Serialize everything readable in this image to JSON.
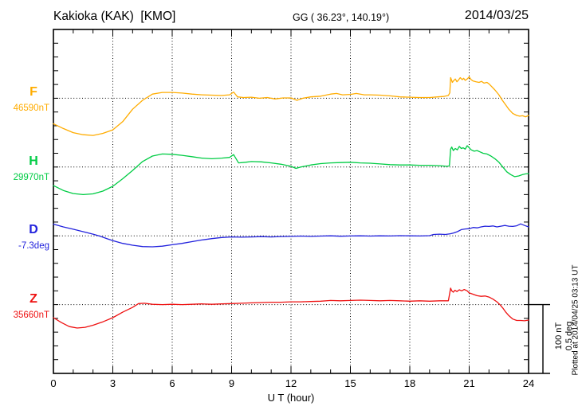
{
  "header": {
    "station_title": "Kakioka (KAK)  [KMO]",
    "coordinates": "GG ( 36.23°, 140.19°)",
    "date": "2014/03/25"
  },
  "x_axis": {
    "label": "U T (hour)",
    "tick_labels": [
      "0",
      "3",
      "6",
      "9",
      "12",
      "15",
      "18",
      "21",
      "24"
    ],
    "min": 0,
    "max": 24,
    "major_step_hours": 3,
    "minor_step_hours": 1
  },
  "scale_bar": {
    "labels": [
      "100 nT",
      "0.5 deg"
    ]
  },
  "footer_note": "Plotted at 2014/04/25 03:13 UT",
  "colors": {
    "F": "#FFAC00",
    "H": "#00CC44",
    "D": "#2222DD",
    "Z": "#EE1111",
    "axis": "#000000",
    "background": "#FFFFFF"
  },
  "chart_data": {
    "type": "line",
    "title": "Kakioka (KAK) [KMO] magnetogram 2014/03/25",
    "xlabel": "U T (hour)",
    "xlim": [
      0,
      24
    ],
    "grid": "dotted vertical lines every 3 h; dotted horizontal baseline per trace",
    "legend_position": "left margin, one label per trace",
    "scale_per_bar": {
      "nT": 100,
      "deg": 0.5
    },
    "series": [
      {
        "name": "F",
        "letter": "F",
        "value_label": "46590nT",
        "baseline_value": 46590,
        "unit": "nT",
        "units_per_bar": 100,
        "color_key": "F",
        "points": [
          [
            0,
            -37
          ],
          [
            0.5,
            -44
          ],
          [
            1,
            -50
          ],
          [
            1.5,
            -53
          ],
          [
            2,
            -54
          ],
          [
            2.5,
            -51
          ],
          [
            3,
            -46
          ],
          [
            3.5,
            -34
          ],
          [
            4,
            -16
          ],
          [
            4.5,
            -3
          ],
          [
            5,
            6
          ],
          [
            5.5,
            8.5
          ],
          [
            6,
            8.5
          ],
          [
            6.5,
            7.5
          ],
          [
            7,
            6
          ],
          [
            7.5,
            5
          ],
          [
            8,
            4.5
          ],
          [
            8.5,
            4
          ],
          [
            8.9,
            5
          ],
          [
            9.1,
            9
          ],
          [
            9.3,
            2
          ],
          [
            9.6,
            1
          ],
          [
            10,
            1.5
          ],
          [
            10.4,
            0
          ],
          [
            10.8,
            1
          ],
          [
            11.2,
            -1
          ],
          [
            11.6,
            0.5
          ],
          [
            12,
            0.5
          ],
          [
            12.3,
            -3
          ],
          [
            12.6,
            0
          ],
          [
            13,
            2
          ],
          [
            13.5,
            3
          ],
          [
            14,
            6
          ],
          [
            14.3,
            7
          ],
          [
            14.6,
            5
          ],
          [
            15,
            5.5
          ],
          [
            15.3,
            7
          ],
          [
            15.7,
            5
          ],
          [
            16,
            5
          ],
          [
            16.5,
            4.5
          ],
          [
            17,
            3.5
          ],
          [
            17.5,
            2
          ],
          [
            18,
            1.5
          ],
          [
            18.5,
            1
          ],
          [
            19,
            1
          ],
          [
            19.4,
            2
          ],
          [
            19.7,
            2.5
          ],
          [
            19.95,
            4
          ],
          [
            20.02,
            8
          ],
          [
            20.06,
            30
          ],
          [
            20.1,
            27
          ],
          [
            20.15,
            23
          ],
          [
            20.2,
            25
          ],
          [
            20.3,
            28
          ],
          [
            20.38,
            24
          ],
          [
            20.45,
            26
          ],
          [
            20.55,
            30
          ],
          [
            20.65,
            27
          ],
          [
            20.72,
            29
          ],
          [
            20.8,
            26
          ],
          [
            20.9,
            28
          ],
          [
            21,
            31
          ],
          [
            21.1,
            27
          ],
          [
            21.2,
            25
          ],
          [
            21.35,
            24
          ],
          [
            21.5,
            23
          ],
          [
            21.62,
            24.5
          ],
          [
            21.75,
            22
          ],
          [
            21.9,
            23
          ],
          [
            22,
            21
          ],
          [
            22.1,
            18
          ],
          [
            22.3,
            12
          ],
          [
            22.5,
            5
          ],
          [
            22.65,
            -2
          ],
          [
            22.8,
            -8
          ],
          [
            23,
            -16
          ],
          [
            23.2,
            -22
          ],
          [
            23.4,
            -25
          ],
          [
            23.55,
            -26
          ],
          [
            23.7,
            -25.5
          ],
          [
            23.85,
            -27
          ],
          [
            24,
            -25
          ]
        ]
      },
      {
        "name": "H",
        "letter": "H",
        "value_label": "29970nT",
        "baseline_value": 29970,
        "unit": "nT",
        "units_per_bar": 100,
        "color_key": "H",
        "points": [
          [
            0,
            -27
          ],
          [
            0.5,
            -34
          ],
          [
            1,
            -38.5
          ],
          [
            1.5,
            -40
          ],
          [
            2,
            -39
          ],
          [
            2.5,
            -35
          ],
          [
            3,
            -28
          ],
          [
            3.5,
            -17
          ],
          [
            4,
            -5
          ],
          [
            4.5,
            8
          ],
          [
            5,
            16
          ],
          [
            5.5,
            19
          ],
          [
            6,
            18.5
          ],
          [
            6.5,
            17
          ],
          [
            7,
            15
          ],
          [
            7.5,
            13
          ],
          [
            8,
            12
          ],
          [
            8.5,
            13
          ],
          [
            8.9,
            14
          ],
          [
            9.1,
            18
          ],
          [
            9.35,
            6
          ],
          [
            9.7,
            7
          ],
          [
            10,
            8
          ],
          [
            10.5,
            7.5
          ],
          [
            11,
            6
          ],
          [
            11.5,
            4
          ],
          [
            12,
            1
          ],
          [
            12.25,
            -2
          ],
          [
            12.5,
            0
          ],
          [
            13,
            3
          ],
          [
            13.5,
            5
          ],
          [
            14,
            6
          ],
          [
            14.5,
            6.5
          ],
          [
            15,
            7
          ],
          [
            15.5,
            6
          ],
          [
            16,
            5.5
          ],
          [
            16.5,
            4.5
          ],
          [
            17,
            3.5
          ],
          [
            17.5,
            3
          ],
          [
            18,
            3
          ],
          [
            18.5,
            2.5
          ],
          [
            19,
            2.5
          ],
          [
            19.5,
            2
          ],
          [
            19.9,
            1
          ],
          [
            20,
            2
          ],
          [
            20.06,
            26
          ],
          [
            20.12,
            29
          ],
          [
            20.2,
            24
          ],
          [
            20.3,
            27
          ],
          [
            20.4,
            25
          ],
          [
            20.5,
            30
          ],
          [
            20.6,
            27
          ],
          [
            20.7,
            28
          ],
          [
            20.8,
            26
          ],
          [
            20.9,
            31
          ],
          [
            21,
            28
          ],
          [
            21.1,
            25
          ],
          [
            21.25,
            23
          ],
          [
            21.4,
            24
          ],
          [
            21.55,
            22
          ],
          [
            21.7,
            20
          ],
          [
            21.9,
            19
          ],
          [
            22.1,
            16
          ],
          [
            22.3,
            12
          ],
          [
            22.5,
            7
          ],
          [
            22.7,
            0
          ],
          [
            22.9,
            -7
          ],
          [
            23.1,
            -11
          ],
          [
            23.3,
            -14
          ],
          [
            23.5,
            -13
          ],
          [
            23.7,
            -11
          ],
          [
            23.85,
            -10
          ],
          [
            24,
            -9.5
          ]
        ]
      },
      {
        "name": "D",
        "letter": "D",
        "value_label": "-7.3deg",
        "baseline_value": -7.3,
        "unit": "deg",
        "units_per_bar": 0.5,
        "color_key": "D",
        "points": [
          [
            0,
            0.085
          ],
          [
            0.5,
            0.065
          ],
          [
            1,
            0.048
          ],
          [
            1.5,
            0.03
          ],
          [
            2,
            0.012
          ],
          [
            2.3,
            0
          ],
          [
            2.7,
            -0.02
          ],
          [
            3,
            -0.035
          ],
          [
            3.5,
            -0.055
          ],
          [
            4,
            -0.068
          ],
          [
            4.5,
            -0.078
          ],
          [
            5,
            -0.08
          ],
          [
            5.5,
            -0.075
          ],
          [
            6,
            -0.065
          ],
          [
            6.5,
            -0.055
          ],
          [
            7,
            -0.042
          ],
          [
            7.5,
            -0.03
          ],
          [
            8,
            -0.02
          ],
          [
            8.5,
            -0.012
          ],
          [
            9,
            -0.008
          ],
          [
            9.5,
            -0.01
          ],
          [
            10,
            -0.008
          ],
          [
            10.5,
            -0.006
          ],
          [
            11,
            -0.008
          ],
          [
            11.5,
            -0.005
          ],
          [
            12,
            -0.004
          ],
          [
            12.5,
            -0.002
          ],
          [
            13,
            -0.004
          ],
          [
            13.5,
            -0.002
          ],
          [
            14,
            0
          ],
          [
            14.5,
            -0.003
          ],
          [
            15,
            -0.001
          ],
          [
            15.5,
            0
          ],
          [
            16,
            -0.002
          ],
          [
            16.5,
            0
          ],
          [
            17,
            -0.001
          ],
          [
            17.5,
            0.001
          ],
          [
            18,
            0
          ],
          [
            18.5,
            -0.001
          ],
          [
            19,
            0.001
          ],
          [
            19.2,
            0.01
          ],
          [
            19.5,
            0.012
          ],
          [
            19.8,
            0.01
          ],
          [
            20.05,
            0.015
          ],
          [
            20.2,
            0.02
          ],
          [
            20.4,
            0.03
          ],
          [
            20.6,
            0.045
          ],
          [
            20.8,
            0.05
          ],
          [
            21,
            0.052
          ],
          [
            21.2,
            0.061
          ],
          [
            21.4,
            0.058
          ],
          [
            21.6,
            0.065
          ],
          [
            21.8,
            0.07
          ],
          [
            22,
            0.068
          ],
          [
            22.2,
            0.072
          ],
          [
            22.4,
            0.065
          ],
          [
            22.6,
            0.07
          ],
          [
            22.8,
            0.075
          ],
          [
            23,
            0.07
          ],
          [
            23.2,
            0.068
          ],
          [
            23.4,
            0.073
          ],
          [
            23.6,
            0.087
          ],
          [
            23.8,
            0.075
          ],
          [
            24,
            0.065
          ]
        ]
      },
      {
        "name": "Z",
        "letter": "Z",
        "value_label": "35660nT",
        "baseline_value": 35660,
        "unit": "nT",
        "units_per_bar": 100,
        "color_key": "Z",
        "points": [
          [
            0,
            -19
          ],
          [
            0.4,
            -26
          ],
          [
            0.8,
            -32
          ],
          [
            1.2,
            -34
          ],
          [
            1.6,
            -33
          ],
          [
            2,
            -30
          ],
          [
            2.5,
            -25
          ],
          [
            3,
            -19
          ],
          [
            3.5,
            -11
          ],
          [
            4,
            -4
          ],
          [
            4.3,
            1.5
          ],
          [
            4.6,
            2
          ],
          [
            5,
            0.5
          ],
          [
            5.5,
            0
          ],
          [
            6,
            0.5
          ],
          [
            6.5,
            0
          ],
          [
            7,
            0.5
          ],
          [
            7.5,
            1
          ],
          [
            8,
            0.5
          ],
          [
            8.5,
            1
          ],
          [
            9,
            1.5
          ],
          [
            9.5,
            2
          ],
          [
            10,
            2.5
          ],
          [
            10.5,
            3
          ],
          [
            11,
            3.5
          ],
          [
            11.5,
            3.5
          ],
          [
            12,
            4
          ],
          [
            12.5,
            4
          ],
          [
            13,
            4.5
          ],
          [
            13.5,
            5
          ],
          [
            14,
            6
          ],
          [
            14.5,
            5.5
          ],
          [
            15,
            6
          ],
          [
            15.5,
            6.5
          ],
          [
            16,
            6
          ],
          [
            16.5,
            5.5
          ],
          [
            17,
            6
          ],
          [
            17.5,
            5.5
          ],
          [
            18,
            5
          ],
          [
            18.5,
            5.5
          ],
          [
            19,
            5
          ],
          [
            19.5,
            5.5
          ],
          [
            19.95,
            5.5
          ],
          [
            20.06,
            24
          ],
          [
            20.12,
            20
          ],
          [
            20.2,
            18
          ],
          [
            20.28,
            21
          ],
          [
            20.38,
            19
          ],
          [
            20.5,
            21.5
          ],
          [
            20.62,
            20
          ],
          [
            20.75,
            22
          ],
          [
            20.9,
            20
          ],
          [
            21,
            17
          ],
          [
            21.2,
            15
          ],
          [
            21.4,
            13
          ],
          [
            21.6,
            12
          ],
          [
            21.8,
            12.5
          ],
          [
            22,
            11
          ],
          [
            22.2,
            8
          ],
          [
            22.4,
            4
          ],
          [
            22.55,
            0
          ],
          [
            22.7,
            -5
          ],
          [
            22.85,
            -11
          ],
          [
            23,
            -16
          ],
          [
            23.2,
            -21
          ],
          [
            23.4,
            -23
          ],
          [
            23.6,
            -23
          ],
          [
            23.8,
            -23.5
          ],
          [
            24,
            -22.5
          ]
        ]
      }
    ]
  }
}
